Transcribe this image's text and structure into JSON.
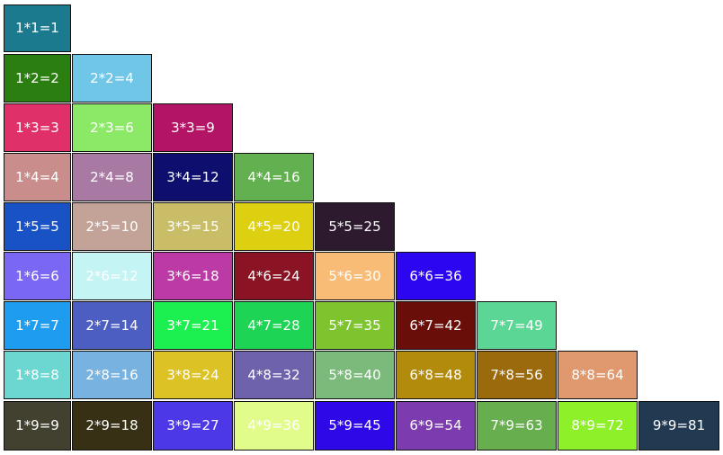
{
  "table": {
    "rows": [
      [
        {
          "label": "1*1=1",
          "color": "#1c7a8e"
        }
      ],
      [
        {
          "label": "1*2=2",
          "color": "#2b7e10"
        },
        {
          "label": "2*2=4",
          "color": "#6fc6e7"
        }
      ],
      [
        {
          "label": "1*3=3",
          "color": "#e0306a"
        },
        {
          "label": "2*3=6",
          "color": "#8ce867"
        },
        {
          "label": "3*3=9",
          "color": "#b41466"
        }
      ],
      [
        {
          "label": "1*4=4",
          "color": "#c98d8c"
        },
        {
          "label": "2*4=8",
          "color": "#a87aa3"
        },
        {
          "label": "3*4=12",
          "color": "#0e0e6e"
        },
        {
          "label": "4*4=16",
          "color": "#62b04f"
        }
      ],
      [
        {
          "label": "1*5=5",
          "color": "#1852c4"
        },
        {
          "label": "2*5=10",
          "color": "#c3a298"
        },
        {
          "label": "3*5=15",
          "color": "#c9be67"
        },
        {
          "label": "4*5=20",
          "color": "#dcd010"
        },
        {
          "label": "5*5=25",
          "color": "#2d1a2e"
        }
      ],
      [
        {
          "label": "1*6=6",
          "color": "#7a68f4"
        },
        {
          "label": "2*6=12",
          "color": "#c4f4f4"
        },
        {
          "label": "3*6=18",
          "color": "#bc3aa6"
        },
        {
          "label": "4*6=24",
          "color": "#8a1424"
        },
        {
          "label": "5*6=30",
          "color": "#f8bc76"
        },
        {
          "label": "6*6=36",
          "color": "#2c06f0"
        }
      ],
      [
        {
          "label": "1*7=7",
          "color": "#1e9cf0"
        },
        {
          "label": "2*7=14",
          "color": "#4c5ec2"
        },
        {
          "label": "3*7=21",
          "color": "#1cf050"
        },
        {
          "label": "4*7=28",
          "color": "#1ed454"
        },
        {
          "label": "5*7=35",
          "color": "#7ec42e"
        },
        {
          "label": "6*7=42",
          "color": "#6a0e0a"
        },
        {
          "label": "7*7=49",
          "color": "#5cd694"
        }
      ],
      [
        {
          "label": "1*8=8",
          "color": "#6cd6d0"
        },
        {
          "label": "2*8=16",
          "color": "#78b2e0"
        },
        {
          "label": "3*8=24",
          "color": "#dcc224"
        },
        {
          "label": "4*8=32",
          "color": "#6e62ac"
        },
        {
          "label": "5*8=40",
          "color": "#7cba7c"
        },
        {
          "label": "6*8=48",
          "color": "#b28a0c"
        },
        {
          "label": "7*8=56",
          "color": "#9a6a0c"
        },
        {
          "label": "8*8=64",
          "color": "#e0986e"
        }
      ],
      [
        {
          "label": "1*9=9",
          "color": "#42402e"
        },
        {
          "label": "2*9=18",
          "color": "#373014"
        },
        {
          "label": "3*9=27",
          "color": "#4c38e6"
        },
        {
          "label": "4*9=36",
          "color": "#e2fc8c"
        },
        {
          "label": "5*9=45",
          "color": "#2e08e6"
        },
        {
          "label": "6*9=54",
          "color": "#7c3cb0"
        },
        {
          "label": "7*9=63",
          "color": "#66ae4e"
        },
        {
          "label": "8*9=72",
          "color": "#8ef028"
        },
        {
          "label": "9*9=81",
          "color": "#213a52"
        }
      ]
    ]
  }
}
